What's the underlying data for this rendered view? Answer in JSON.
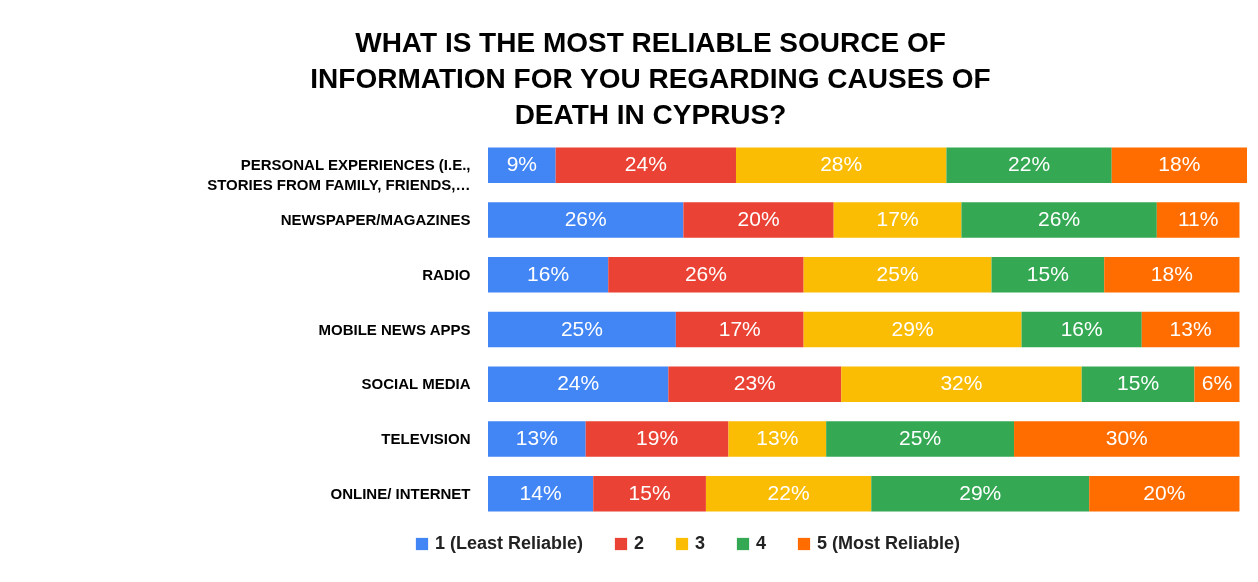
{
  "chart_data": {
    "type": "bar",
    "orientation": "horizontal",
    "stacked": true,
    "legend": "bottom",
    "title": "WHAT IS THE MOST RELIABLE SOURCE OF INFORMATION FOR YOU REGARDING CAUSES OF DEATH IN CYPRUS?",
    "categories": [
      "PERSONAL EXPERIENCES (I.E., STORIES FROM FAMILY, FRIENDS,…",
      "NEWSPAPER/MAGAZINES",
      "RADIO",
      "MOBILE NEWS APPS",
      "SOCIAL MEDIA",
      "TELEVISION",
      "ONLINE/ INTERNET"
    ],
    "series": [
      {
        "name": "1 (Least Reliable)",
        "color": "#4285f4",
        "values": [
          9,
          26,
          16,
          25,
          24,
          13,
          14
        ],
        "value_labels": [
          "9%",
          "26%",
          "16%",
          "25%",
          "24%",
          "13%",
          "14%"
        ]
      },
      {
        "name": "2",
        "color": "#ea4335",
        "values": [
          24,
          20,
          26,
          17,
          23,
          19,
          15
        ],
        "value_labels": [
          "24%",
          "20%",
          "26%",
          "17%",
          "23%",
          "19%",
          "15%"
        ]
      },
      {
        "name": "3",
        "color": "#fbbc04",
        "values": [
          28,
          17,
          25,
          29,
          32,
          13,
          22
        ],
        "value_labels": [
          "28%",
          "17%",
          "25%",
          "29%",
          "32%",
          "13%",
          "22%"
        ]
      },
      {
        "name": "4",
        "color": "#34a853",
        "values": [
          22,
          26,
          15,
          16,
          15,
          25,
          29
        ],
        "value_labels": [
          "22%",
          "26%",
          "15%",
          "16%",
          "15%",
          "25%",
          "29%"
        ]
      },
      {
        "name": "5 (Most Reliable)",
        "color": "#ff6d01",
        "values": [
          18,
          11,
          18,
          13,
          6,
          30,
          20
        ],
        "value_labels": [
          "18%",
          "11%",
          "18%",
          "13%",
          "6%",
          "30%",
          "20%"
        ]
      }
    ]
  }
}
